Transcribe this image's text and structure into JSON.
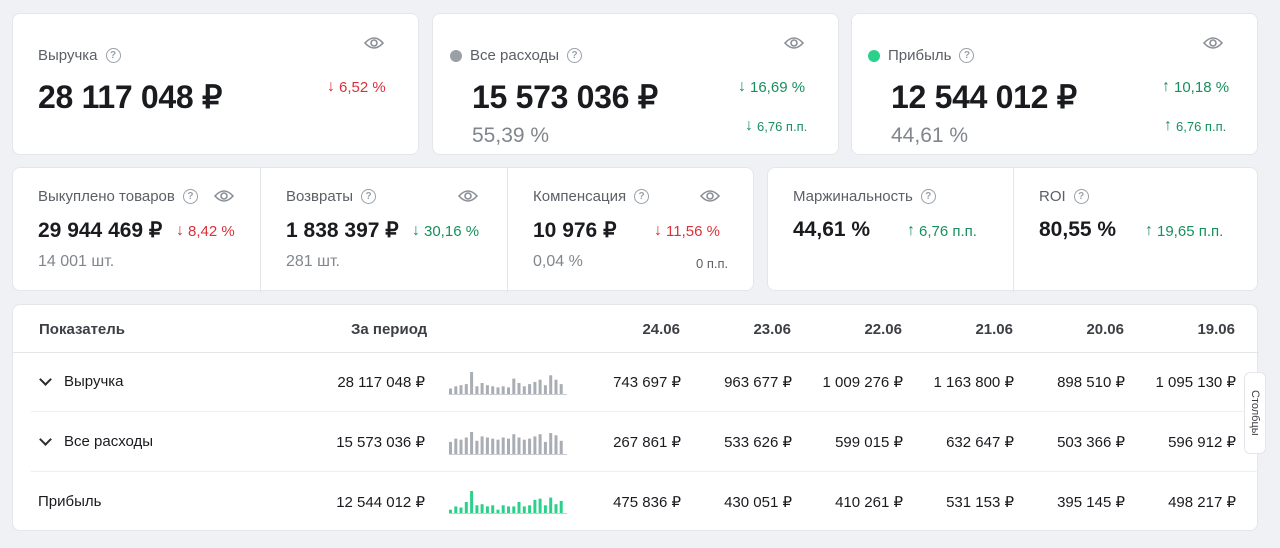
{
  "top_cards": {
    "revenue": {
      "label": "Выручка",
      "value": "28 117 048 ₽",
      "change": "6,52 %"
    },
    "expenses": {
      "label": "Все расходы",
      "value": "15 573 036 ₽",
      "share": "55,39 %",
      "change": "16,69 %",
      "pp": "6,76 п.п.",
      "dot_color": "#9aa0a8"
    },
    "profit": {
      "label": "Прибыль",
      "value": "12 544 012 ₽",
      "share": "44,61 %",
      "change": "10,18 %",
      "pp": "6,76 п.п.",
      "dot_color": "#2bd18b"
    }
  },
  "mid_cards": {
    "bought": {
      "label": "Выкуплено товаров",
      "value": "29 944 469 ₽",
      "qty": "14 001 шт.",
      "change": "8,42 %"
    },
    "returns": {
      "label": "Возвраты",
      "value": "1 838 397 ₽",
      "qty": "281 шт.",
      "change": "30,16 %"
    },
    "compensation": {
      "label": "Компенсация",
      "value": "10 976 ₽",
      "share": "0,04 %",
      "change": "11,56 %",
      "pp": "0 п.п."
    },
    "margin": {
      "label": "Маржинальность",
      "value": "44,61 %",
      "change": "6,76 п.п."
    },
    "roi": {
      "label": "ROI",
      "value": "80,55 %",
      "change": "19,65 п.п."
    }
  },
  "table": {
    "headers": {
      "indicator": "Показатель",
      "period": "За период",
      "dates": [
        "24.06",
        "23.06",
        "22.06",
        "21.06",
        "20.06",
        "19.06"
      ]
    },
    "rows": [
      {
        "name": "Выручка",
        "total": "28 117 048 ₽",
        "values": [
          "743 697 ₽",
          "963 677 ₽",
          "1 009 276 ₽",
          "1 163 800 ₽",
          "898 510 ₽",
          "1 095 130 ₽"
        ],
        "spark": [
          0.25,
          0.35,
          0.4,
          0.45,
          1.0,
          0.35,
          0.5,
          0.4,
          0.35,
          0.3,
          0.35,
          0.3,
          0.7,
          0.5,
          0.35,
          0.45,
          0.55,
          0.65,
          0.4,
          0.85,
          0.65,
          0.45
        ]
      },
      {
        "name": "Все расходы",
        "total": "15 573 036 ₽",
        "values": [
          "267 861 ₽",
          "533 626 ₽",
          "599 015 ₽",
          "632 647 ₽",
          "503 366 ₽",
          "596 912 ₽"
        ],
        "spark": [
          0.55,
          0.7,
          0.65,
          0.75,
          1.0,
          0.6,
          0.8,
          0.75,
          0.7,
          0.65,
          0.75,
          0.7,
          0.9,
          0.75,
          0.65,
          0.7,
          0.8,
          0.9,
          0.55,
          0.95,
          0.85,
          0.6
        ]
      },
      {
        "name": "Прибыль",
        "total": "12 544 012 ₽",
        "values": [
          "475 836 ₽",
          "430 051 ₽",
          "410 261 ₽",
          "531 153 ₽",
          "395 145 ₽",
          "498 217 ₽"
        ],
        "spark": [
          0.15,
          0.3,
          0.25,
          0.5,
          1.0,
          0.35,
          0.4,
          0.3,
          0.35,
          0.15,
          0.35,
          0.3,
          0.3,
          0.5,
          0.3,
          0.35,
          0.6,
          0.65,
          0.35,
          0.7,
          0.4,
          0.55
        ]
      }
    ]
  },
  "side_tab": "Столбцы",
  "colors": {
    "red": "#d9313a",
    "green": "#17905d",
    "spark_grey": "#a9adb4",
    "spark_green": "#2bd18b"
  }
}
